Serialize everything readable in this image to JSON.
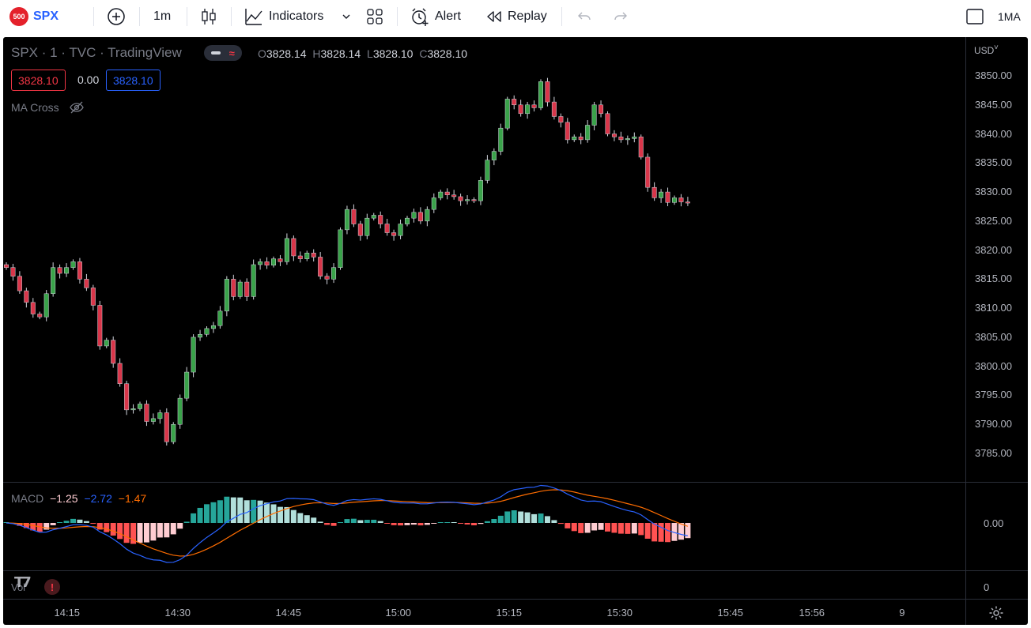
{
  "toolbar": {
    "symbol_badge": "500",
    "symbol": "SPX",
    "interval": "1m",
    "indicators_label": "Indicators",
    "alert_label": "Alert",
    "replay_label": "Replay",
    "layout_label": "1MA"
  },
  "legend": {
    "title": "SPX · 1 · TVC · TradingView",
    "o_label": "O",
    "o_value": "3828.14",
    "h_label": "H",
    "h_value": "3828.14",
    "l_label": "L",
    "l_value": "3828.10",
    "c_label": "C",
    "c_value": "3828.10",
    "bid": "3828.10",
    "spread": "0.00",
    "ask": "3828.10",
    "indicator_name": "MA Cross"
  },
  "macd_legend": {
    "name": "MACD",
    "hist": "−1.25",
    "macd": "−2.72",
    "signal": "−1.47"
  },
  "vol_label": "Vol",
  "price_axis": {
    "currency": "USD",
    "ticks": [
      "3850.00",
      "3845.00",
      "3840.00",
      "3835.00",
      "3830.00",
      "3825.00",
      "3820.00",
      "3815.00",
      "3810.00",
      "3805.00",
      "3800.00",
      "3795.00",
      "3790.00",
      "3785.00"
    ]
  },
  "macd_axis_label": "0.00",
  "vol_axis_label": "0",
  "time_axis": {
    "ticks": [
      "14:15",
      "14:30",
      "14:45",
      "15:00",
      "15:15",
      "15:30",
      "15:45",
      "15:56",
      "9"
    ]
  },
  "colors": {
    "up": "#26a69a",
    "up_candle": "#3aa34a",
    "down": "#ef5350",
    "down_candle": "#d9364a",
    "macd_line": "#2962ff",
    "signal_line": "#ff6d00",
    "hist_up_strong": "#26a69a",
    "hist_up_weak": "#b2dfdb",
    "hist_down_strong": "#ff5252",
    "hist_down_weak": "#ffcdd2"
  },
  "chart_data": {
    "type": "candlestick",
    "title": "SPX · 1 · TVC · TradingView",
    "ylim": [
      3782,
      3852
    ],
    "x_ticks": [
      "14:15",
      "14:30",
      "14:45",
      "15:00",
      "15:15",
      "15:30",
      "15:45",
      "15:56"
    ],
    "closes": [
      3817.0,
      3815.5,
      3813.0,
      3811.0,
      3809.0,
      3808.5,
      3812.5,
      3817.0,
      3816.0,
      3817.0,
      3818.0,
      3815.0,
      3813.5,
      3810.5,
      3803.5,
      3804.5,
      3800.5,
      3797.0,
      3792.5,
      3792.7,
      3793.5,
      3790.5,
      3791.0,
      3792.0,
      3787.0,
      3790.0,
      3794.5,
      3799.0,
      3805.0,
      3805.5,
      3806.5,
      3807.0,
      3809.5,
      3815.0,
      3812.0,
      3814.5,
      3812.0,
      3817.5,
      3818.0,
      3817.4,
      3818.5,
      3818.0,
      3822.0,
      3819.0,
      3818.5,
      3819.5,
      3818.8,
      3815.5,
      3815.0,
      3817.0,
      3823.5,
      3827.0,
      3824.5,
      3822.5,
      3825.5,
      3826.0,
      3824.5,
      3823.0,
      3822.5,
      3824.5,
      3825.5,
      3826.5,
      3825.0,
      3827.0,
      3829.0,
      3830.0,
      3829.5,
      3829.2,
      3828.5,
      3828.7,
      3828.5,
      3832.0,
      3835.5,
      3837.0,
      3841.0,
      3846.0,
      3845.0,
      3843.5,
      3845.0,
      3844.5,
      3849.0,
      3845.5,
      3843.0,
      3842.0,
      3839.0,
      3839.5,
      3839.0,
      3841.5,
      3845.0,
      3843.5,
      3840.0,
      3839.5,
      3839.0,
      3839.2,
      3839.5,
      3836.0,
      3830.8,
      3829.0,
      3830.0,
      3828.2,
      3829.0,
      3828.3,
      3828.1
    ],
    "macd_series": {
      "macd_line_last": -2.72,
      "signal_line_last": -1.47,
      "histogram_last": -1.25
    }
  }
}
